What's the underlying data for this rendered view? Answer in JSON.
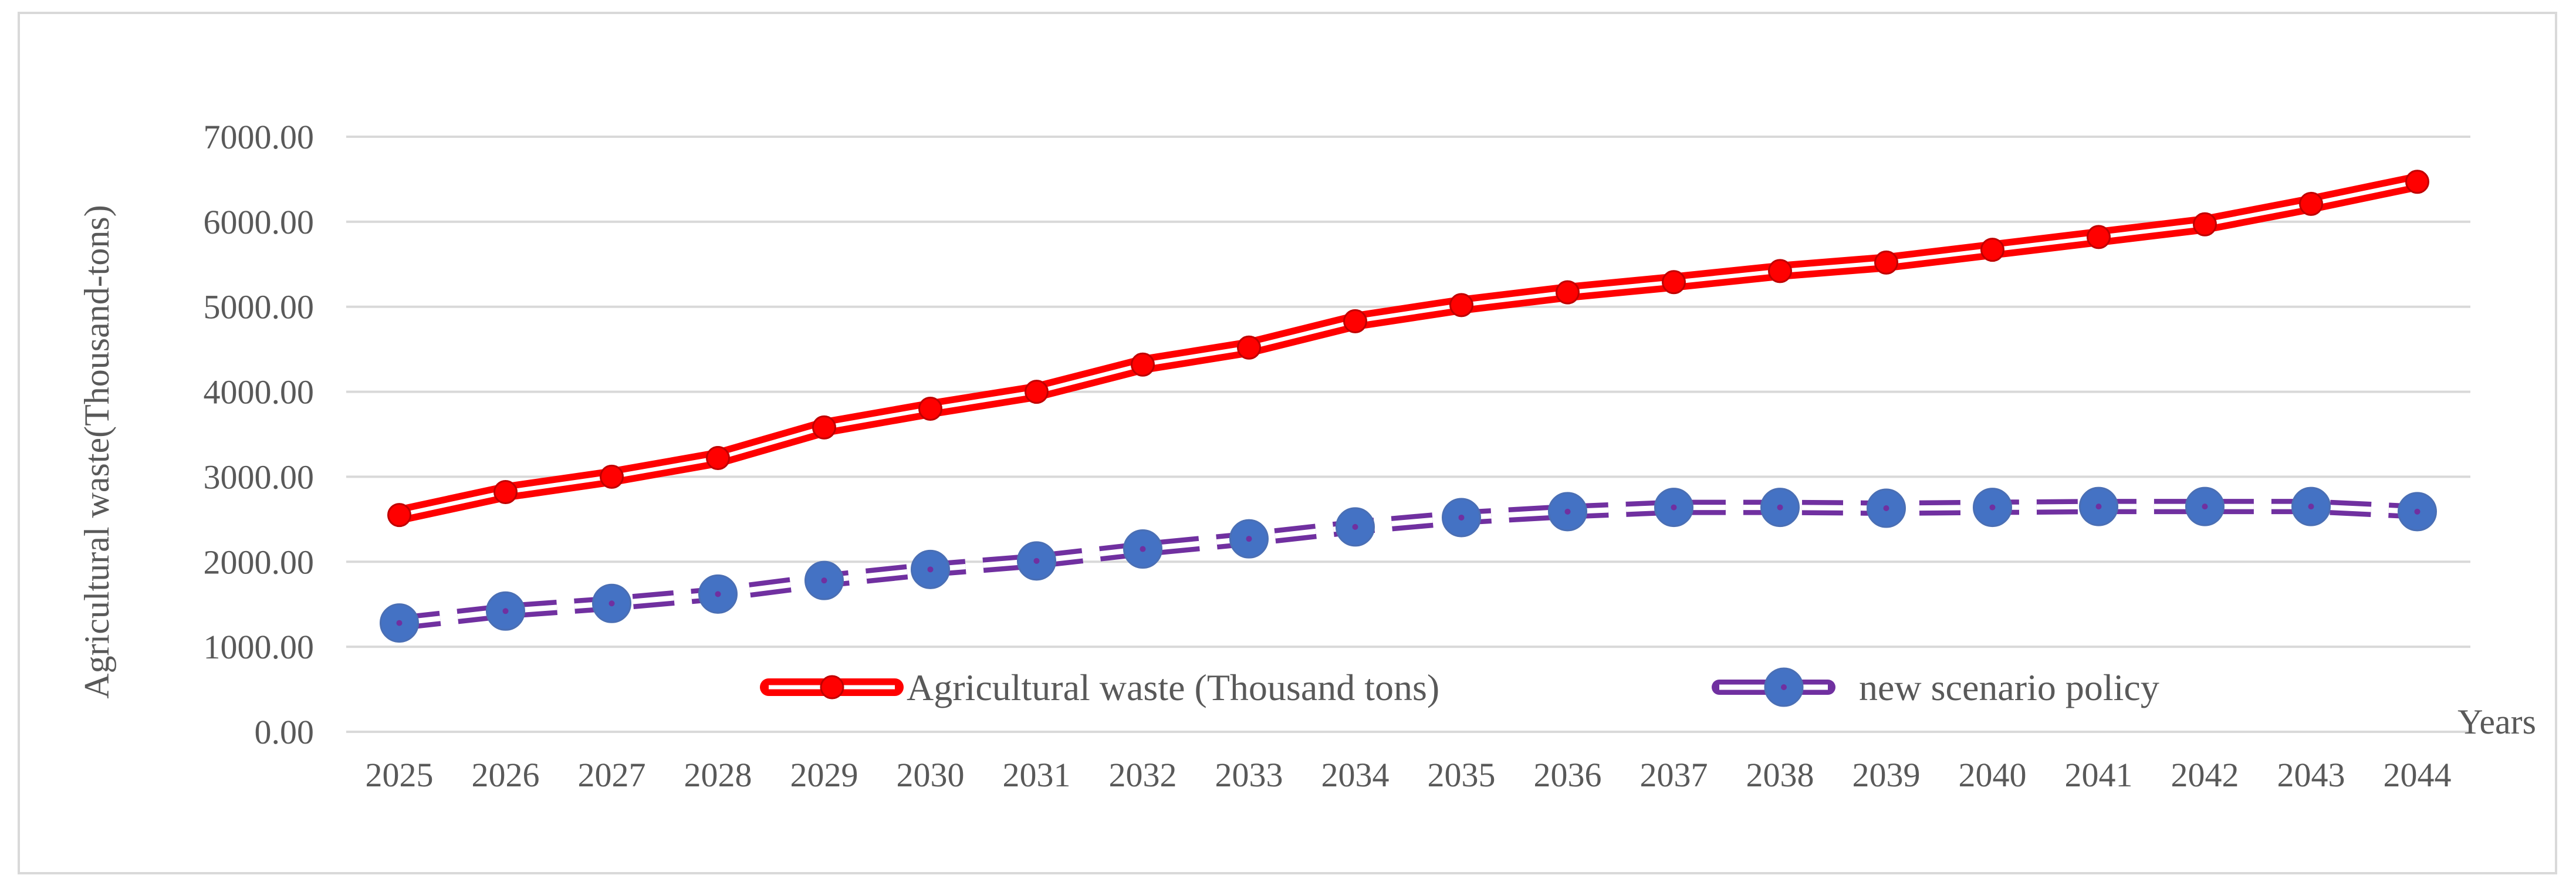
{
  "chart_data": {
    "type": "line",
    "title": "",
    "xlabel": "Years",
    "ylabel": "Agricultural waste(Thousand-tons)",
    "ylim": [
      0,
      7000
    ],
    "y_ticks": [
      "0.00",
      "1000.00",
      "2000.00",
      "3000.00",
      "4000.00",
      "5000.00",
      "6000.00",
      "7000.00"
    ],
    "grid": true,
    "legend_position": "inside-bottom-center",
    "categories": [
      "2025",
      "2026",
      "2027",
      "2028",
      "2029",
      "2030",
      "2031",
      "2032",
      "2033",
      "2034",
      "2035",
      "2036",
      "2037",
      "2038",
      "2039",
      "2040",
      "2041",
      "2042",
      "2043",
      "2044"
    ],
    "series": [
      {
        "name": "Agricultural waste (Thousand tons)",
        "color": "#ff0000",
        "values": [
          2550,
          2820,
          3000,
          3220,
          3580,
          3800,
          4000,
          4320,
          4520,
          4830,
          5020,
          5170,
          5290,
          5420,
          5520,
          5670,
          5820,
          5970,
          6210,
          6470
        ]
      },
      {
        "name": "new scenario policy",
        "color": "#7030a0",
        "marker_color": "#4472c4",
        "values": [
          1280,
          1420,
          1510,
          1620,
          1780,
          1910,
          2010,
          2150,
          2270,
          2410,
          2520,
          2590,
          2640,
          2640,
          2630,
          2640,
          2650,
          2650,
          2650,
          2590
        ]
      }
    ]
  }
}
